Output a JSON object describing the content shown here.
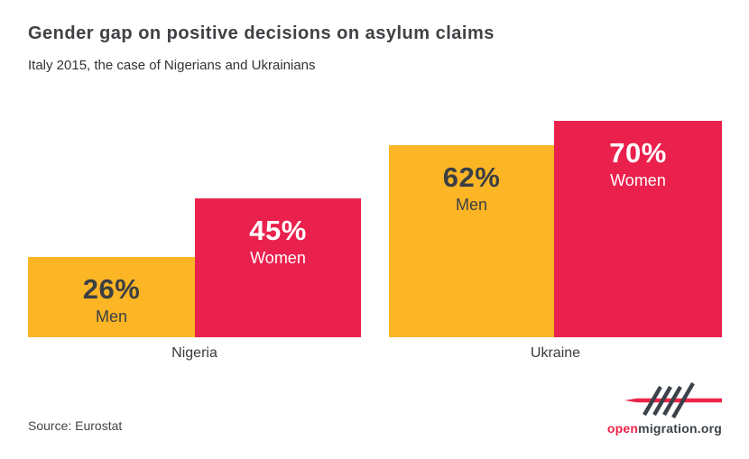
{
  "header": {
    "title": "Gender gap on positive decisions on asylum claims",
    "subtitle": "Italy 2015, the case of Nigerians and Ukrainians"
  },
  "chart_data": {
    "type": "bar",
    "title": "Gender gap on positive decisions on asylum claims",
    "subtitle": "Italy 2015, the case of Nigerians and Ukrainians",
    "unit": "%",
    "categories": [
      "Nigeria",
      "Ukraine"
    ],
    "series": [
      {
        "name": "Men",
        "color": "#FBB525",
        "values": [
          26,
          62
        ]
      },
      {
        "name": "Women",
        "color": "#EA214D",
        "values": [
          45,
          70
        ]
      }
    ],
    "groups": [
      {
        "category": "Nigeria",
        "bars": [
          {
            "series": "Men",
            "value": 26,
            "display": "26%"
          },
          {
            "series": "Women",
            "value": 45,
            "display": "45%"
          }
        ]
      },
      {
        "category": "Ukraine",
        "bars": [
          {
            "series": "Men",
            "value": 62,
            "display": "62%"
          },
          {
            "series": "Women",
            "value": 70,
            "display": "70%"
          }
        ]
      }
    ],
    "layout": {
      "axes_hidden": true,
      "gridlines": false,
      "value_labels": "inside-top",
      "legend": "inline-labels"
    }
  },
  "footer": {
    "source": "Source: Eurostat",
    "logo": {
      "text_red": "open",
      "text_dark": "migration.org"
    }
  },
  "colors": {
    "men_bar": "#FBB525",
    "women_bar": "#EA214D",
    "dark_text": "#3B3F44",
    "light_text": "#FFFFFF",
    "logo_red": "#ED2348",
    "logo_dark": "#3C4249",
    "background": "#FFFFFF"
  }
}
